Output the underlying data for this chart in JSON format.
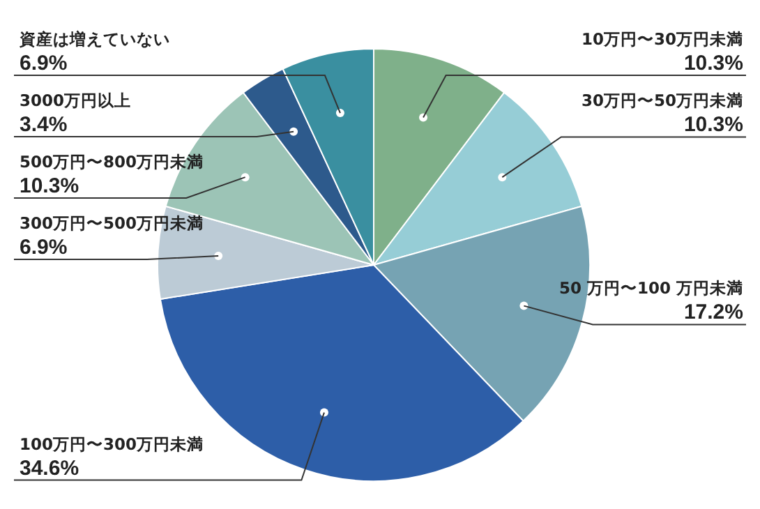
{
  "chart_data": {
    "type": "pie",
    "categories": [
      "10万円〜30万円未満",
      "30万円〜50万円未満",
      "50 万円〜100 万円未満",
      "100万円〜300万円未満",
      "300万円〜500万円未満",
      "500万円〜800万円未満",
      "3000万円以上",
      "資産は増えていない"
    ],
    "values": [
      10.3,
      10.3,
      17.2,
      34.6,
      6.9,
      10.3,
      3.4,
      6.9
    ],
    "value_labels": [
      "10.3%",
      "10.3%",
      "17.2%",
      "34.6%",
      "6.9%",
      "10.3%",
      "3.4%",
      "6.9%"
    ],
    "colors": [
      "#7fb08a",
      "#96cdd6",
      "#76a3b3",
      "#2d5ea8",
      "#bccbd6",
      "#9cc4b6",
      "#2d5a8c",
      "#3a8fa0"
    ]
  }
}
